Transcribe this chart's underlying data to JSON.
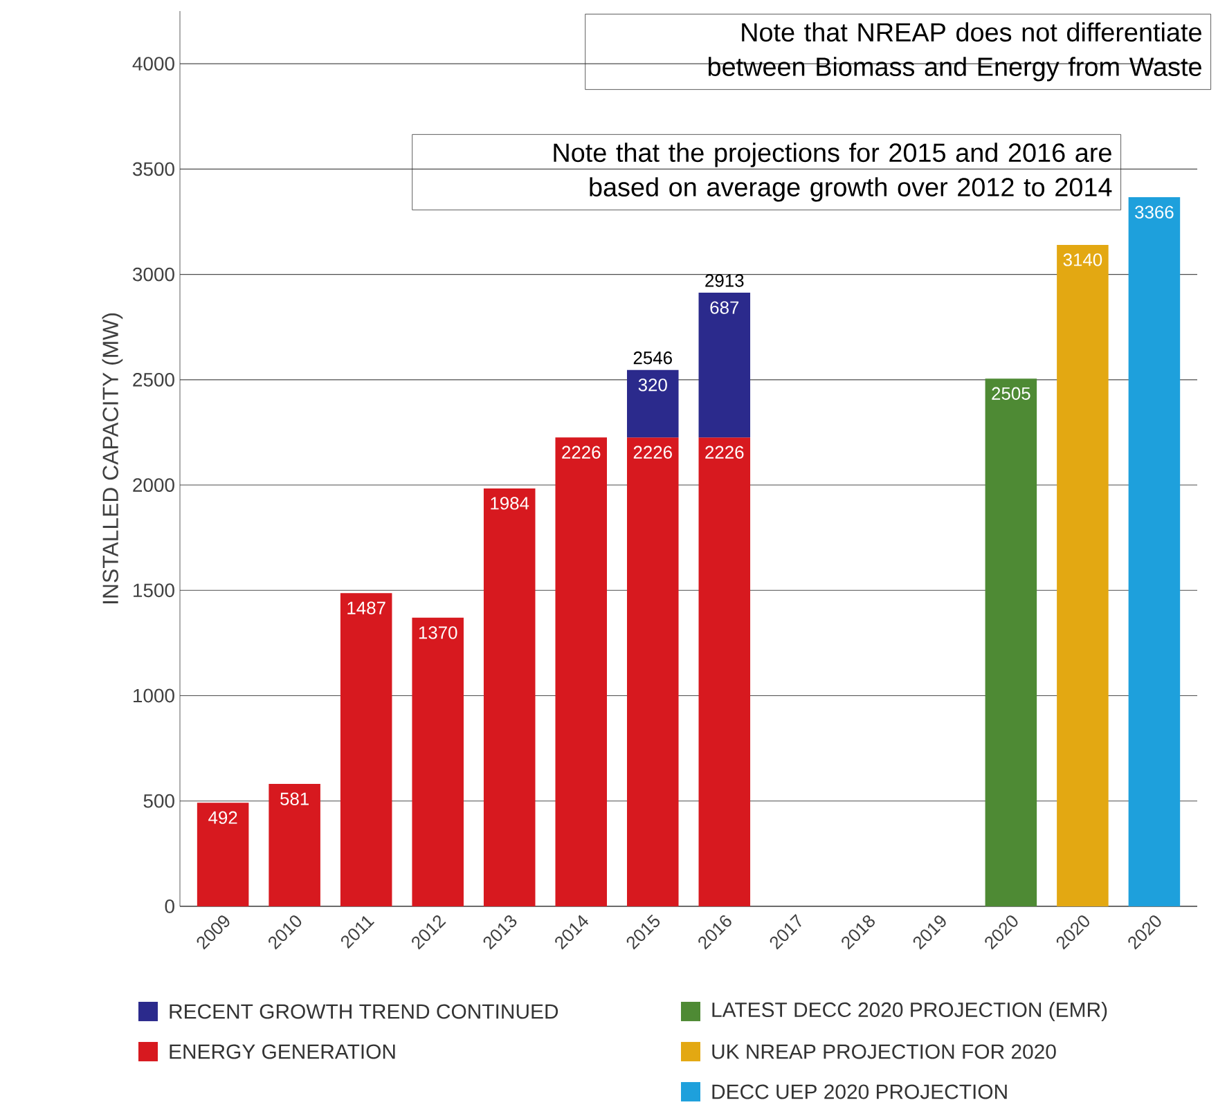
{
  "chart_data": {
    "type": "bar",
    "stacked": true,
    "ylabel": "INSTALLED CAPACITY (MW)",
    "categories": [
      "2009",
      "2010",
      "2011",
      "2012",
      "2013",
      "2014",
      "2015",
      "2016",
      "2017",
      "2018",
      "2019",
      "2020",
      "2020",
      "2020"
    ],
    "series": [
      {
        "name": "ENERGY GENERATION",
        "color": "#d7191f",
        "values": [
          492,
          581,
          1487,
          1370,
          1984,
          2226,
          2226,
          2226,
          null,
          null,
          null,
          null,
          null,
          null
        ]
      },
      {
        "name": "RECENT GROWTH TREND CONTINUED",
        "color": "#2b2a8c",
        "values": [
          null,
          null,
          null,
          null,
          null,
          null,
          320,
          687,
          null,
          null,
          null,
          null,
          null,
          null
        ]
      },
      {
        "name": "LATEST DECC 2020 PROJECTION (EMR)",
        "color": "#4e8a34",
        "values": [
          null,
          null,
          null,
          null,
          null,
          null,
          null,
          null,
          null,
          null,
          null,
          2505,
          null,
          null
        ]
      },
      {
        "name": "UK NREAP PROJECTION FOR 2020",
        "color": "#e3a812",
        "values": [
          null,
          null,
          null,
          null,
          null,
          null,
          null,
          null,
          null,
          null,
          null,
          null,
          3140,
          null
        ]
      },
      {
        "name": "DECC UEP 2020 PROJECTION",
        "color": "#1ea0dc",
        "values": [
          null,
          null,
          null,
          null,
          null,
          null,
          null,
          null,
          null,
          null,
          null,
          null,
          null,
          3366
        ]
      }
    ],
    "totals": [
      null,
      null,
      null,
      null,
      null,
      null,
      "2546",
      "2913",
      null,
      null,
      null,
      null,
      null,
      null
    ],
    "data_labels": true,
    "ylim": [
      0,
      4250
    ],
    "yticks": [
      0,
      500,
      1000,
      1500,
      2000,
      2500,
      3000,
      3500,
      4000
    ],
    "grid": "y",
    "legend": "bottom",
    "annotations": [
      "Note that NREAP does not differentiate between Biomass and Energy from Waste",
      "Note that the projections for 2015 and 2016 are based on average growth over 2012 to 2014"
    ]
  }
}
